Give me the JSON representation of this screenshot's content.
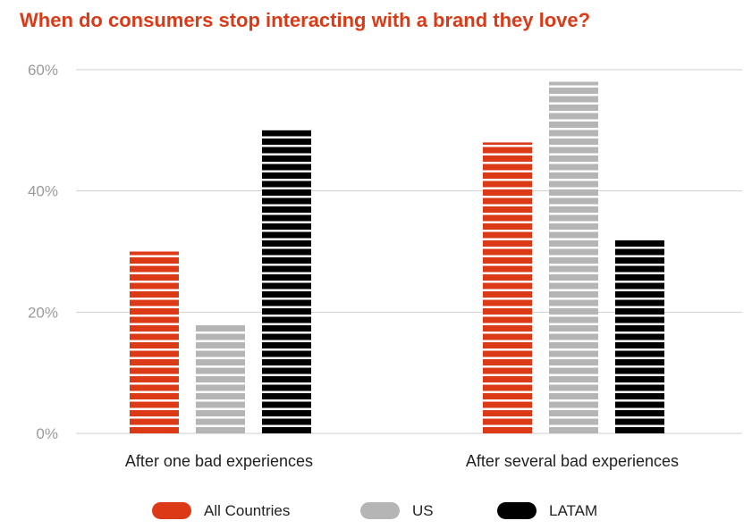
{
  "title": "When do consumers stop interacting with a brand they love?",
  "chart_data": {
    "type": "bar",
    "title": "When do consumers stop interacting with a brand they love?",
    "categories": [
      "After one bad experiences",
      "After several bad experiences"
    ],
    "series": [
      {
        "name": "All Countries",
        "values": [
          30,
          48
        ],
        "color": "#dc3a17"
      },
      {
        "name": "US",
        "values": [
          18,
          58
        ],
        "color": "#b5b5b5"
      },
      {
        "name": "LATAM",
        "values": [
          50,
          32
        ],
        "color": "#000000"
      }
    ],
    "ylim": [
      0,
      60
    ],
    "yticks": [
      "0%",
      "20%",
      "40%",
      "60%"
    ],
    "ytick_values": [
      0,
      20,
      40,
      60
    ],
    "grid": true,
    "legend": "bottom",
    "bar_style": "horizontally striped"
  }
}
